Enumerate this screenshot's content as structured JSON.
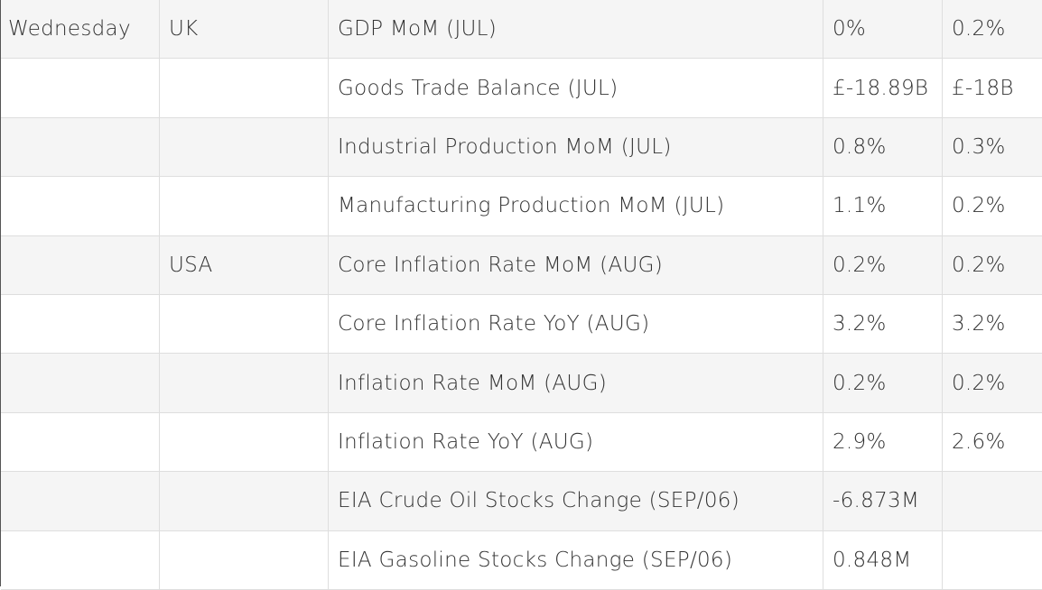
{
  "rows": [
    {
      "day": "Wednesday",
      "country": "UK",
      "event": "GDP MoM (JUL)",
      "actual": "0%",
      "previous": "0.2%"
    },
    {
      "day": "",
      "country": "",
      "event": "Goods Trade Balance (JUL)",
      "actual": "£-18.89B",
      "previous": "£-18B"
    },
    {
      "day": "",
      "country": "",
      "event": "Industrial Production MoM (JUL)",
      "actual": "0.8%",
      "previous": "0.3%"
    },
    {
      "day": "",
      "country": "",
      "event": "Manufacturing Production MoM (JUL)",
      "actual": "1.1%",
      "previous": "0.2%"
    },
    {
      "day": "",
      "country": "USA",
      "event": "Core Inflation Rate MoM (AUG)",
      "actual": "0.2%",
      "previous": "0.2%"
    },
    {
      "day": "",
      "country": "",
      "event": "Core Inflation Rate YoY (AUG)",
      "actual": "3.2%",
      "previous": "3.2%"
    },
    {
      "day": "",
      "country": "",
      "event": "Inflation Rate MoM (AUG)",
      "actual": "0.2%",
      "previous": "0.2%"
    },
    {
      "day": "",
      "country": "",
      "event": "Inflation Rate YoY (AUG)",
      "actual": "2.9%",
      "previous": "2.6%"
    },
    {
      "day": "",
      "country": "",
      "event": "EIA Crude Oil Stocks Change (SEP/06)",
      "actual": "-6.873M",
      "previous": ""
    },
    {
      "day": "",
      "country": "",
      "event": "EIA Gasoline Stocks Change (SEP/06)",
      "actual": "0.848M",
      "previous": ""
    }
  ],
  "colors": {
    "row_alt": "#f5f5f5",
    "row": "#ffffff",
    "border": "#dedede",
    "text": "#333333"
  }
}
